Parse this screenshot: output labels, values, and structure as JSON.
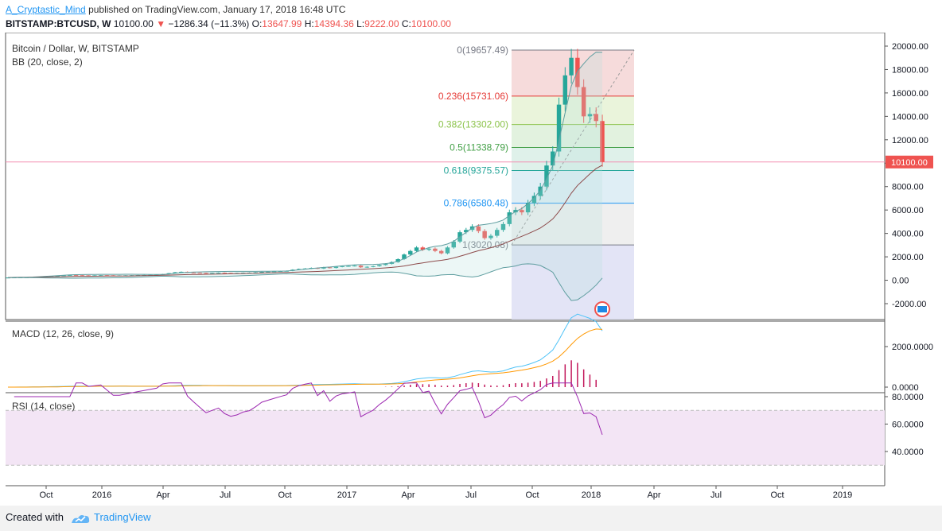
{
  "header": {
    "author": "A_Cryptastic_Mind",
    "published": "published on TradingView.com, January 17, 2018 16:48 UTC",
    "symbol": "BITSTAMP:BTCUSD, W",
    "last": "10100.00",
    "change": "−1286.34 (−11.3%)",
    "o_label": "O:",
    "o_value": "13647.99",
    "h_label": "H:",
    "h_value": "14394.36",
    "l_label": "L:",
    "l_value": "9222.00",
    "c_label": "C:",
    "c_value": "10100.00"
  },
  "main_panel": {
    "title": "Bitcoin / Dollar, W, BITSTAMP",
    "indicator": "BB (20, close, 2)",
    "price_badge": "10100.00",
    "y_ticks": [
      "20000.00",
      "18000.00",
      "16000.00",
      "14000.00",
      "12000.00",
      "10000.00",
      "8000.00",
      "6000.00",
      "4000.00",
      "2000.00",
      "0.00",
      "-2000.00"
    ]
  },
  "fib_levels": [
    {
      "label": "0(19657.49)",
      "color": "#787b86"
    },
    {
      "label": "0.236(15731.06)",
      "color": "#e53935"
    },
    {
      "label": "0.382(13302.00)",
      "color": "#8bc34a"
    },
    {
      "label": "0.5(11338.79)",
      "color": "#43a047"
    },
    {
      "label": "0.618(9375.57)",
      "color": "#26a69a"
    },
    {
      "label": "0.786(6580.48)",
      "color": "#2196f3"
    },
    {
      "label": "1(3020.08)",
      "color": "#787b86"
    }
  ],
  "macd_panel": {
    "title": "MACD (12, 26, close, 9)",
    "y_ticks": [
      "2000.0000",
      "0.0000"
    ]
  },
  "rsi_panel": {
    "title": "RSI (14, close)",
    "y_ticks": [
      "80.0000",
      "60.0000",
      "40.0000"
    ]
  },
  "x_axis": {
    "ticks": [
      "Oct",
      "2016",
      "Apr",
      "Jul",
      "Oct",
      "2017",
      "Apr",
      "Jul",
      "Oct",
      "2018",
      "Apr",
      "Jul",
      "Oct",
      "2019"
    ]
  },
  "footer": {
    "created": "Created with",
    "brand": "TradingView"
  },
  "chart_data": {
    "type": "candlestick",
    "title": "Bitcoin / Dollar, W, BITSTAMP",
    "y_range": [
      -2000,
      20500
    ],
    "x_range": [
      "2015-08",
      "2019-03"
    ],
    "last_close": 10100.0,
    "candles_note": "weekly OHLC, approximate",
    "closes": [
      230,
      240,
      250,
      255,
      270,
      300,
      330,
      360,
      380,
      420,
      440,
      430,
      420,
      410,
      420,
      430,
      420,
      410,
      410,
      420,
      430,
      440,
      450,
      460,
      470,
      520,
      600,
      680,
      720,
      660,
      640,
      620,
      600,
      620,
      640,
      620,
      610,
      620,
      640,
      650,
      680,
      720,
      740,
      760,
      780,
      800,
      900,
      960,
      1000,
      1050,
      1000,
      1100,
      1050,
      1150,
      1200,
      1220,
      1250,
      1100,
      1150,
      1200,
      1300,
      1400,
      1550,
      1800,
      2200,
      2500,
      2800,
      2600,
      2700,
      2500,
      2300,
      2800,
      3300,
      4100,
      4300,
      4600,
      4200,
      3600,
      3800,
      4300,
      4800,
      5800,
      6000,
      5800,
      6600,
      7200,
      8000,
      9800,
      11000,
      15000,
      17500,
      19000,
      16500,
      14000,
      14200,
      13600,
      10100
    ],
    "bollinger": {
      "upper_end": 18200,
      "basis_end": 9200,
      "lower_end": 0
    },
    "macd": {
      "peak": 3000,
      "signal_peak": 2700
    },
    "rsi": {
      "overbought": 70,
      "oversold": 30,
      "last": 53
    }
  }
}
